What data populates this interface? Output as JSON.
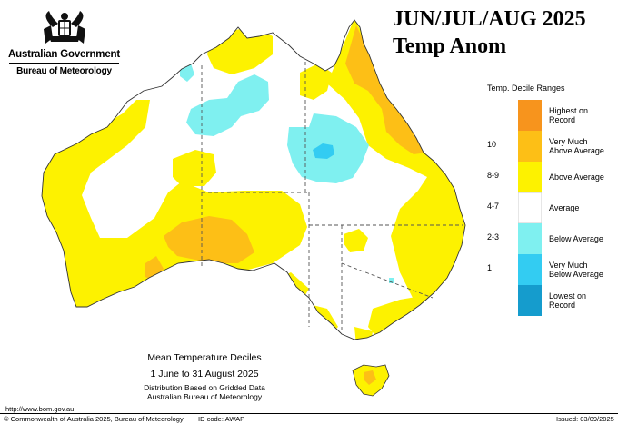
{
  "header": {
    "title_line1": "JUN/JUL/AUG 2025",
    "title_line2": "Temp Anom"
  },
  "logo": {
    "government": "Australian Government",
    "bureau": "Bureau of Meteorology"
  },
  "legend": {
    "title": "Temp. Decile Ranges",
    "items": [
      {
        "code": "",
        "label1": "Highest on",
        "label2": "Record",
        "color": "#f7941d"
      },
      {
        "code": "10",
        "label1": "Very Much",
        "label2": "Above Average",
        "color": "#fdbf16"
      },
      {
        "code": "8-9",
        "label1": "Above Average",
        "label2": "",
        "color": "#fdf200"
      },
      {
        "code": "4-7",
        "label1": "Average",
        "label2": "",
        "color": "#ffffff"
      },
      {
        "code": "2-3",
        "label1": "Below Average",
        "label2": "",
        "color": "#7ff0f0"
      },
      {
        "code": "1",
        "label1": "Very Much",
        "label2": "Below Average",
        "color": "#33ccf2"
      },
      {
        "code": "",
        "label1": "Lowest on",
        "label2": "Record",
        "color": "#159ccd"
      }
    ]
  },
  "caption": {
    "line1": "Mean Temperature Deciles",
    "line2": "1 June to 31 August 2025",
    "line3": "Distribution Based on Gridded Data",
    "line4": "Australian Bureau of Meteorology"
  },
  "footer": {
    "url": "http://www.bom.gov.au",
    "copyright": "© Commonwealth of Australia 2025, Bureau of Meteorology",
    "id_code": "ID code: AWAP",
    "issued": "Issued: 03/09/2025"
  },
  "colors": {
    "above": "#fdf200",
    "very_much_above": "#fdbf16",
    "highest": "#f7941d",
    "below": "#7ff0f0",
    "very_much_below": "#33ccf2",
    "lowest": "#159ccd"
  }
}
